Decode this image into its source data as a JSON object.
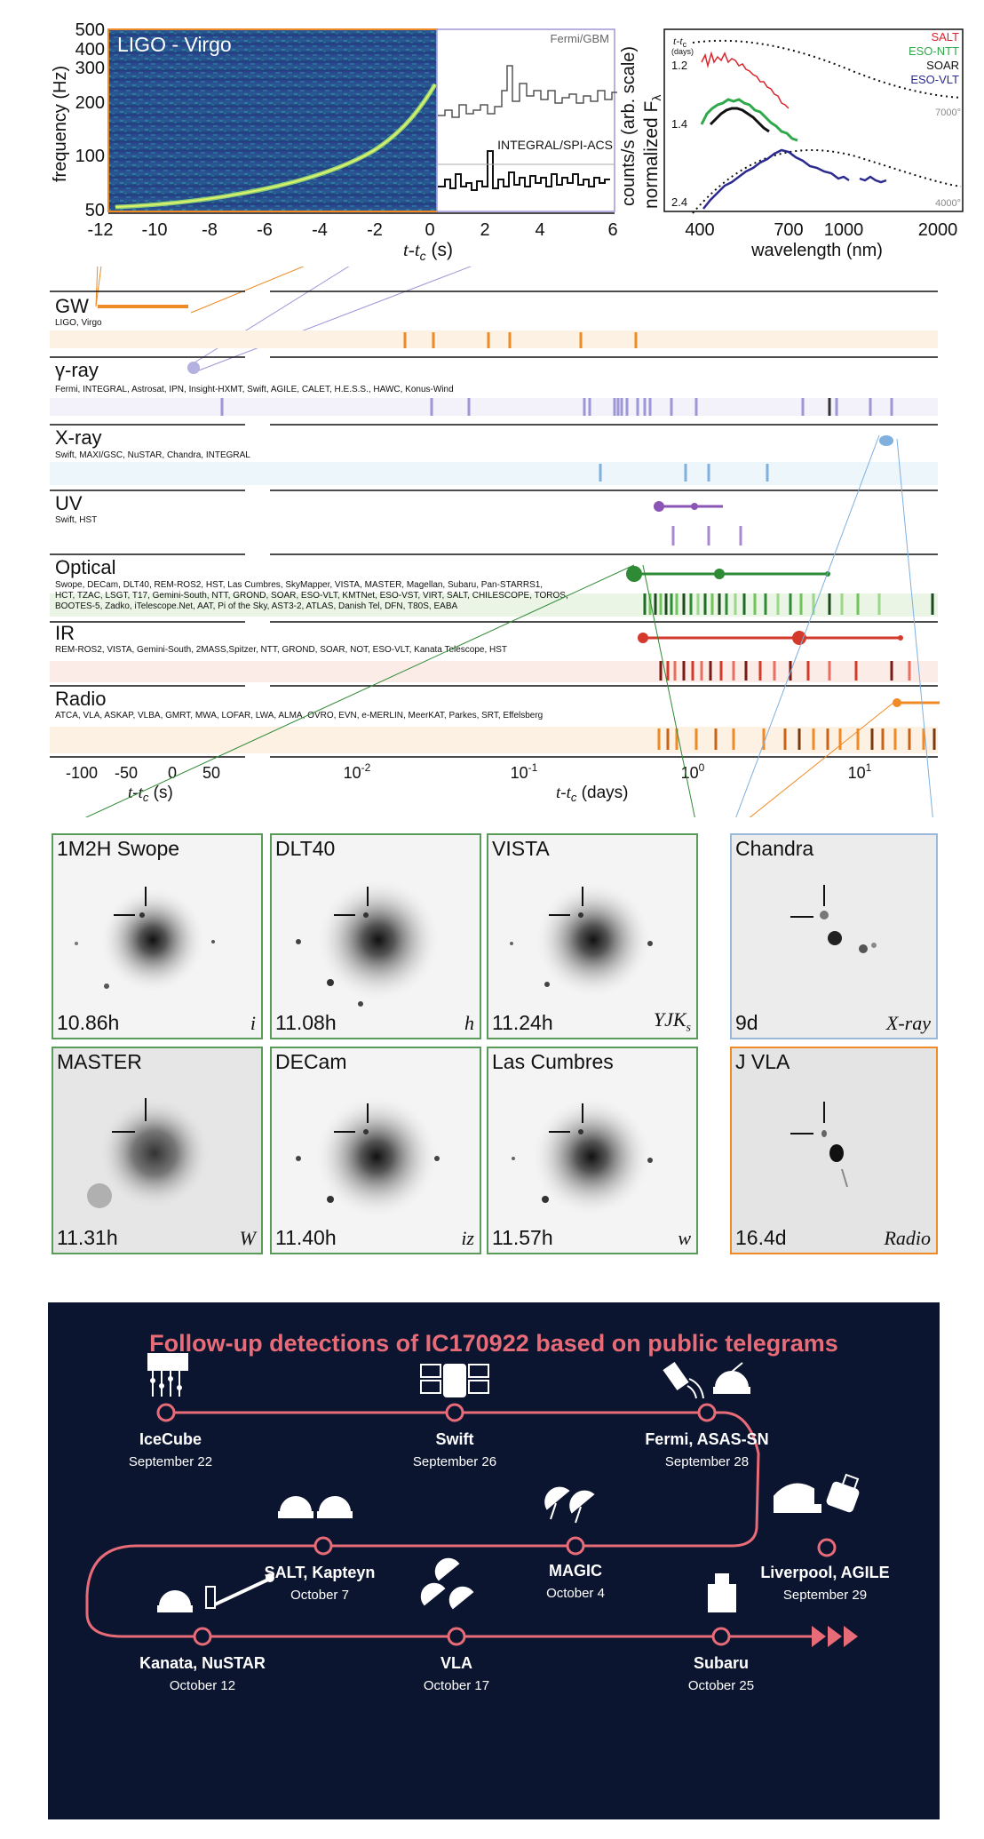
{
  "gw_panel": {
    "title": "LIGO - Virgo",
    "y_label": "frequency (Hz)",
    "y_ticks": [
      "500",
      "400",
      "300",
      "200",
      "100",
      "50"
    ],
    "x_ticks": [
      "-12",
      "-10",
      "-8",
      "-6",
      "-4",
      "-2",
      "0",
      "2",
      "4",
      "6"
    ],
    "x_label": "t-t",
    "x_label_sub": "c",
    "x_label_unit": " (s)",
    "fermi_label": "Fermi/GBM",
    "integral_label": "INTEGRAL/SPI-ACS",
    "counts_label": "counts/s (arb. scale)"
  },
  "spectra_panel": {
    "tc_label": "t-t",
    "tc_sub": "c",
    "tc_unit": "(days)",
    "y_label": "normalized F",
    "y_label_sub": "λ",
    "epochs": [
      "1.2",
      "1.4",
      "2.4"
    ],
    "legend": [
      {
        "name": "SALT",
        "color": "#d9262e"
      },
      {
        "name": "ESO-NTT",
        "color": "#2ea84a"
      },
      {
        "name": "SOAR",
        "color": "#111111"
      },
      {
        "name": "ESO-VLT",
        "color": "#2b2a8f"
      }
    ],
    "bb_labels": [
      "7000°",
      "4000°"
    ],
    "x_ticks": [
      "400",
      "700",
      "1000",
      "2000"
    ],
    "x_label": "wavelength (nm)"
  },
  "timeline": {
    "rows": [
      {
        "name": "GW",
        "facilities": "LIGO, Virgo",
        "color": "#f08a24"
      },
      {
        "name": "γ-ray",
        "facilities": "Fermi, INTEGRAL, Astrosat, IPN, Insight-HXMT, Swift, AGILE, CALET, H.E.S.S., HAWC, Konus-Wind",
        "color": "#9d97d6"
      },
      {
        "name": "X-ray",
        "facilities": "Swift, MAXI/GSC, NuSTAR, Chandra, INTEGRAL",
        "color": "#7fb0de"
      },
      {
        "name": "UV",
        "facilities": "Swift, HST",
        "color": "#8a55b5"
      },
      {
        "name": "Optical",
        "facilities_lines": [
          "Swope, DECam, DLT40, REM-ROS2, HST, Las Cumbres, SkyMapper, VISTA, MASTER, Magellan, Subaru, Pan-STARRS1,",
          "HCT, TZAC, LSGT, T17, Gemini-South, NTT, GROND, SOAR, ESO-VLT, KMTNet, ESO-VST, VIRT, SALT, CHILESCOPE, TOROS,",
          "BOOTES-5, Zadko, iTelescope.Net, AAT, Pi of the Sky, AST3-2, ATLAS, Danish Tel, DFN, T80S, EABA"
        ],
        "color": "#2f8a35"
      },
      {
        "name": "IR",
        "facilities": "REM-ROS2, VISTA, Gemini-South, 2MASS,Spitzer, NTT, GROND, SOAR, NOT, ESO-VLT, Kanata Telescope, HST",
        "color": "#d33a2c"
      },
      {
        "name": "Radio",
        "facilities": "ATCA, VLA, ASKAP, VLBA, GMRT, MWA, LOFAR, LWA, ALMA, OVRO, EVN, e-MERLIN, MeerKAT, Parkes, SRT, Effelsberg",
        "color": "#f08a24"
      }
    ],
    "left_axis_ticks": [
      "-100",
      "-50",
      "0",
      "50"
    ],
    "left_axis_label": "t-t",
    "left_axis_sub": "c",
    "left_axis_unit": " (s)",
    "right_axis_ticks": [
      "10",
      "10",
      "10",
      "10"
    ],
    "right_axis_exps": [
      "-2",
      "-1",
      "0",
      "1"
    ],
    "right_axis_label": "t-t",
    "right_axis_sub": "c",
    "right_axis_unit": " (days)"
  },
  "images": [
    {
      "title": "1M2H Swope",
      "time": "10.86h",
      "filter": "i"
    },
    {
      "title": "DLT40",
      "time": "11.08h",
      "filter": "h"
    },
    {
      "title": "VISTA",
      "time": "11.24h",
      "filter": "YJK",
      "filter_sub": "s"
    },
    {
      "title": "Chandra",
      "time": "9d",
      "filter": "X-ray"
    },
    {
      "title": "MASTER",
      "time": "11.31h",
      "filter": "W"
    },
    {
      "title": "DECam",
      "time": "11.40h",
      "filter": "iz"
    },
    {
      "title": "Las Cumbres",
      "time": "11.57h",
      "filter": "w"
    },
    {
      "title": "J VLA",
      "time": "16.4d",
      "filter": "Radio"
    }
  ],
  "telegrams": {
    "title": "Follow-up detections of IC170922 based on public telegrams",
    "colors": {
      "background": "#0c1530",
      "accent": "#e86b78"
    },
    "stops": [
      {
        "name": "IceCube",
        "date": "September 22"
      },
      {
        "name": "Swift",
        "date": "September 26"
      },
      {
        "name": "Fermi, ASAS-SN",
        "date": "September 28"
      },
      {
        "name": "Liverpool, AGILE",
        "date": "September 29"
      },
      {
        "name": "MAGIC",
        "date": "October 4"
      },
      {
        "name": "SALT, Kapteyn",
        "date": "October 7"
      },
      {
        "name": "Kanata, NuSTAR",
        "date": "October 12"
      },
      {
        "name": "VLA",
        "date": "October 17"
      },
      {
        "name": "Subaru",
        "date": "October 25"
      }
    ]
  }
}
